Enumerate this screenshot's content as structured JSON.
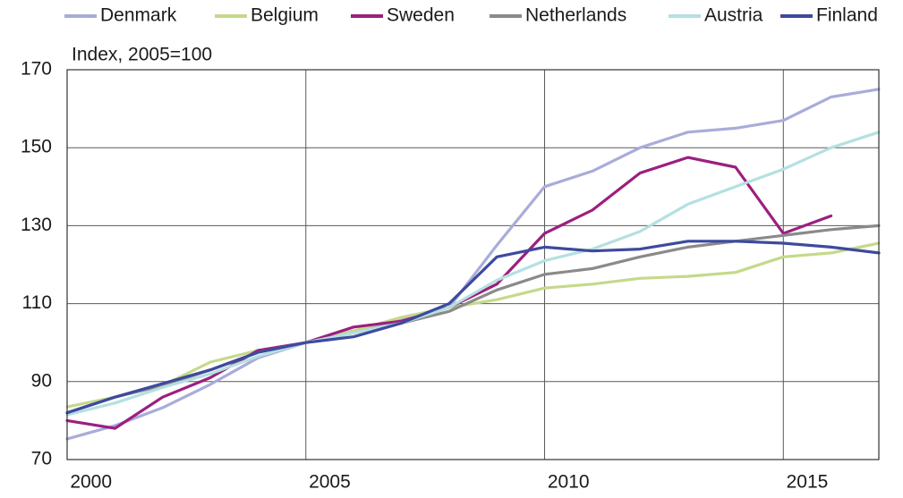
{
  "chart_data": {
    "type": "line",
    "subtitle": "Index, 2005=100",
    "x": [
      2000,
      2001,
      2002,
      2003,
      2004,
      2005,
      2006,
      2007,
      2008,
      2009,
      2010,
      2011,
      2012,
      2013,
      2014,
      2015,
      2016,
      2017
    ],
    "xlim": [
      2000,
      2017
    ],
    "xticks": [
      2000,
      2005,
      2010,
      2015
    ],
    "ylim": [
      70,
      170
    ],
    "yticks": [
      70,
      90,
      110,
      130,
      150,
      170
    ],
    "grid": true,
    "legend": "top",
    "series": [
      {
        "name": "Denmark",
        "color": "#a9acd9",
        "values": [
          75.3,
          78.7,
          83.3,
          89.3,
          96.1,
          100,
          103,
          106,
          109,
          125,
          140,
          144,
          150,
          154,
          155,
          157,
          163,
          165
        ]
      },
      {
        "name": "Belgium",
        "color": "#c5d98a",
        "values": [
          83.5,
          86,
          89,
          95,
          98,
          100,
          103,
          106.5,
          109,
          111,
          114,
          115,
          116.5,
          117,
          118,
          122,
          123,
          125.5
        ]
      },
      {
        "name": "Sweden",
        "color": "#9b1f80",
        "values": [
          80,
          78,
          86,
          91,
          98,
          100,
          104,
          105.5,
          109,
          115,
          128,
          134,
          143.5,
          147.5,
          145,
          128,
          132.5,
          null
        ]
      },
      {
        "name": "Netherlands",
        "color": "#8a8a8a",
        "values": [
          82,
          86,
          89,
          93,
          97.5,
          100,
          102.5,
          105,
          108,
          113.5,
          117.5,
          119,
          122,
          124.5,
          126,
          127.5,
          129,
          130
        ]
      },
      {
        "name": "Austria",
        "color": "#b4e0e1",
        "values": [
          81.5,
          84.5,
          88.5,
          92,
          96.5,
          100,
          102.5,
          105,
          109,
          116,
          121,
          124,
          128.5,
          135.5,
          140,
          144.5,
          150,
          154
        ]
      },
      {
        "name": "Finland",
        "color": "#3d4a9e",
        "values": [
          82,
          86,
          89.5,
          93,
          97.5,
          100,
          101.5,
          105,
          110,
          122,
          124.5,
          123.5,
          124,
          126,
          126,
          125.5,
          124.5,
          123
        ]
      }
    ]
  }
}
